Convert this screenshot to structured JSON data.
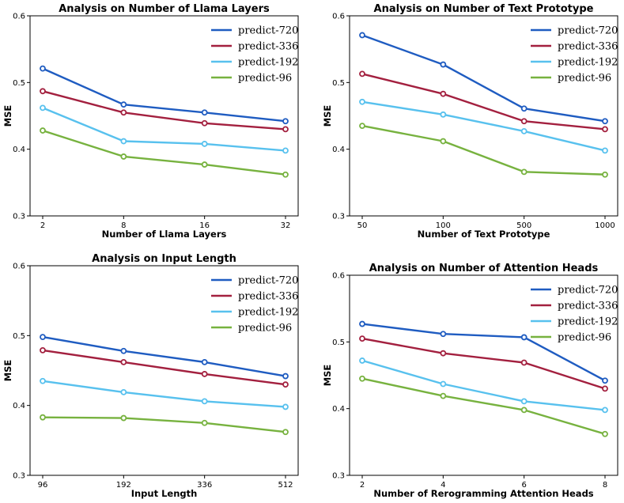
{
  "colors": {
    "predict-720": "#1f5cc1",
    "predict-336": "#a3203f",
    "predict-192": "#58c1ee",
    "predict-96": "#77b23f"
  },
  "chart_data": [
    {
      "type": "line",
      "title": "Analysis on Number of Llama Layers",
      "xlabel": "Number of Llama Layers",
      "ylabel": "MSE",
      "categories": [
        "2",
        "8",
        "16",
        "32"
      ],
      "ylim": [
        0.3,
        0.6
      ],
      "yticks": [
        "0.3",
        "0.4",
        "0.5",
        "0.6"
      ],
      "legend": "top-right",
      "series": [
        {
          "name": "predict-720",
          "values": [
            0.521,
            0.467,
            0.455,
            0.442
          ]
        },
        {
          "name": "predict-336",
          "values": [
            0.487,
            0.455,
            0.439,
            0.43
          ]
        },
        {
          "name": "predict-192",
          "values": [
            0.462,
            0.412,
            0.408,
            0.398
          ]
        },
        {
          "name": "predict-96",
          "values": [
            0.428,
            0.389,
            0.377,
            0.362
          ]
        }
      ]
    },
    {
      "type": "line",
      "title": "Analysis on Number of Text Prototype",
      "xlabel": "Number of Text Prototype",
      "ylabel": "MSE",
      "categories": [
        "50",
        "100",
        "500",
        "1000"
      ],
      "ylim": [
        0.3,
        0.6
      ],
      "yticks": [
        "0.3",
        "0.4",
        "0.5",
        "0.6"
      ],
      "legend": "top-right",
      "series": [
        {
          "name": "predict-720",
          "values": [
            0.571,
            0.527,
            0.461,
            0.442
          ]
        },
        {
          "name": "predict-336",
          "values": [
            0.513,
            0.483,
            0.442,
            0.43
          ]
        },
        {
          "name": "predict-192",
          "values": [
            0.471,
            0.452,
            0.427,
            0.398
          ]
        },
        {
          "name": "predict-96",
          "values": [
            0.435,
            0.412,
            0.366,
            0.362
          ]
        }
      ]
    },
    {
      "type": "line",
      "title": "Analysis on Input Length",
      "xlabel": "Input Length",
      "ylabel": "MSE",
      "categories": [
        "96",
        "192",
        "336",
        "512"
      ],
      "ylim": [
        0.3,
        0.6
      ],
      "yticks": [
        "0.3",
        "0.4",
        "0.5",
        "0.6"
      ],
      "legend": "top-right",
      "series": [
        {
          "name": "predict-720",
          "values": [
            0.498,
            0.478,
            0.462,
            0.442
          ]
        },
        {
          "name": "predict-336",
          "values": [
            0.479,
            0.462,
            0.445,
            0.43
          ]
        },
        {
          "name": "predict-192",
          "values": [
            0.435,
            0.419,
            0.406,
            0.398
          ]
        },
        {
          "name": "predict-96",
          "values": [
            0.383,
            0.382,
            0.375,
            0.362
          ]
        }
      ]
    },
    {
      "type": "line",
      "title": "Analysis on Number of Attention Heads",
      "xlabel": "Number of Rerogramming Attention Heads",
      "ylabel": "MSE",
      "categories": [
        "2",
        "4",
        "6",
        "8"
      ],
      "ylim": [
        0.3,
        0.6
      ],
      "yticks": [
        "0.3",
        "0.4",
        "0.5",
        "0.6"
      ],
      "legend": "top-right",
      "series": [
        {
          "name": "predict-720",
          "values": [
            0.527,
            0.512,
            0.507,
            0.442
          ]
        },
        {
          "name": "predict-336",
          "values": [
            0.505,
            0.483,
            0.469,
            0.43
          ]
        },
        {
          "name": "predict-192",
          "values": [
            0.472,
            0.437,
            0.411,
            0.398
          ]
        },
        {
          "name": "predict-96",
          "values": [
            0.445,
            0.419,
            0.398,
            0.362
          ]
        }
      ]
    }
  ]
}
